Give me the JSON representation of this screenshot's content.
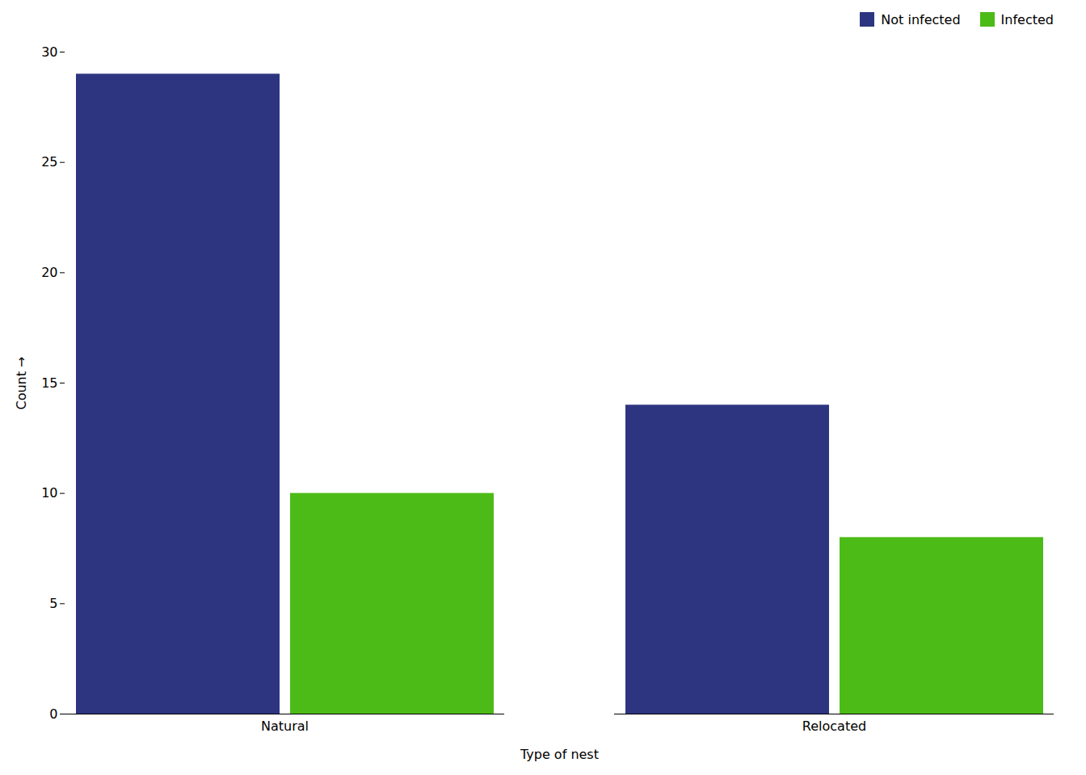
{
  "chart_data": {
    "type": "bar",
    "categories": [
      "Natural",
      "Relocated"
    ],
    "series": [
      {
        "name": "Not infected",
        "color": "#2E3580",
        "values": [
          29,
          14
        ]
      },
      {
        "name": "Infected",
        "color": "#4CBB17",
        "values": [
          10,
          8
        ]
      }
    ],
    "xlabel": "Type of nest",
    "ylabel": "Count",
    "ylim": [
      0,
      30
    ],
    "yticks": [
      0,
      5,
      10,
      15,
      20,
      25,
      30
    ],
    "legend": "upper right",
    "grid": false
  }
}
